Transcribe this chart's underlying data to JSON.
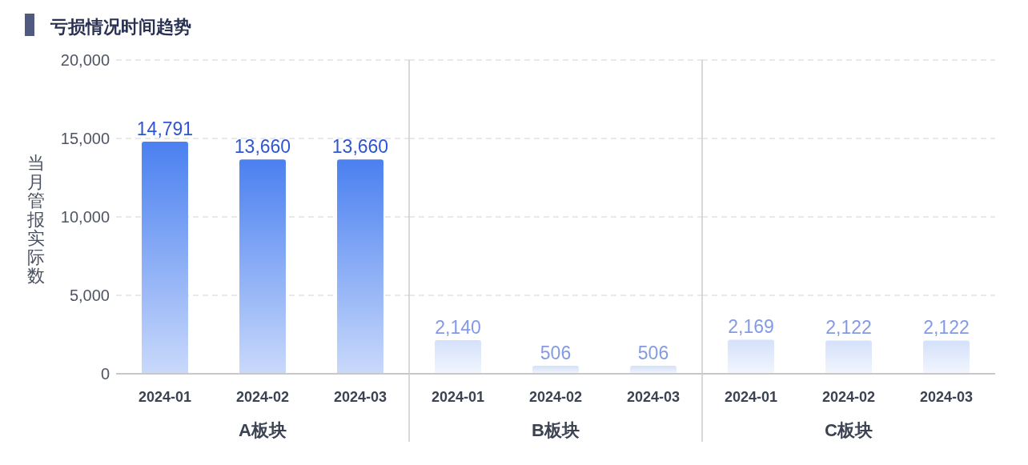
{
  "chart_data": [
    {
      "type": "bar",
      "title": "亏损情况时间趋势",
      "ylabel": "当月管报实际数",
      "xlabel": "A板块",
      "categories": [
        "2024-01",
        "2024-02",
        "2024-03"
      ],
      "values": [
        14791,
        13660,
        13660
      ],
      "value_labels": [
        "14,791",
        "13,660",
        "13,660"
      ],
      "color": "#4a80f0",
      "ylim": [
        0,
        20000
      ],
      "yticks": [
        0,
        {
          "value": 5000,
          "label": "5,000"
        },
        {
          "value": 10000,
          "label": "10,000"
        },
        {
          "value": 15000,
          "label": "15,000"
        },
        {
          "value": 20000,
          "label": "20,000"
        }
      ],
      "grid": "y"
    },
    {
      "type": "bar",
      "xlabel": "B板块",
      "categories": [
        "2024-01",
        "2024-02",
        "2024-03"
      ],
      "values": [
        2140,
        506,
        506
      ],
      "value_labels": [
        "2,140",
        "506",
        "506"
      ],
      "color": "#d4e1fa",
      "ylim": [
        0,
        20000
      ],
      "yticks": [
        {
          "value": 5000,
          "label": null
        },
        {
          "value": 10000,
          "label": null
        },
        {
          "value": 15000,
          "label": null
        },
        {
          "value": 20000,
          "label": null
        }
      ],
      "grid": "y",
      "tick_labels": "x"
    },
    {
      "type": "bar",
      "xlabel": "C板块",
      "categories": [
        "2024-01",
        "2024-02",
        "2024-03"
      ],
      "values": [
        2169,
        2122,
        2122
      ],
      "value_labels": [
        "2,169",
        "2,122",
        "2,122"
      ],
      "color": "#d4e1fa",
      "ylim": [
        0,
        20000
      ],
      "yticks": [
        {
          "value": 5000,
          "label": null
        },
        {
          "value": 10000,
          "label": null
        },
        {
          "value": 15000,
          "label": null
        },
        {
          "value": 20000,
          "label": null
        }
      ],
      "grid": "y",
      "tick_labels": "x"
    }
  ]
}
